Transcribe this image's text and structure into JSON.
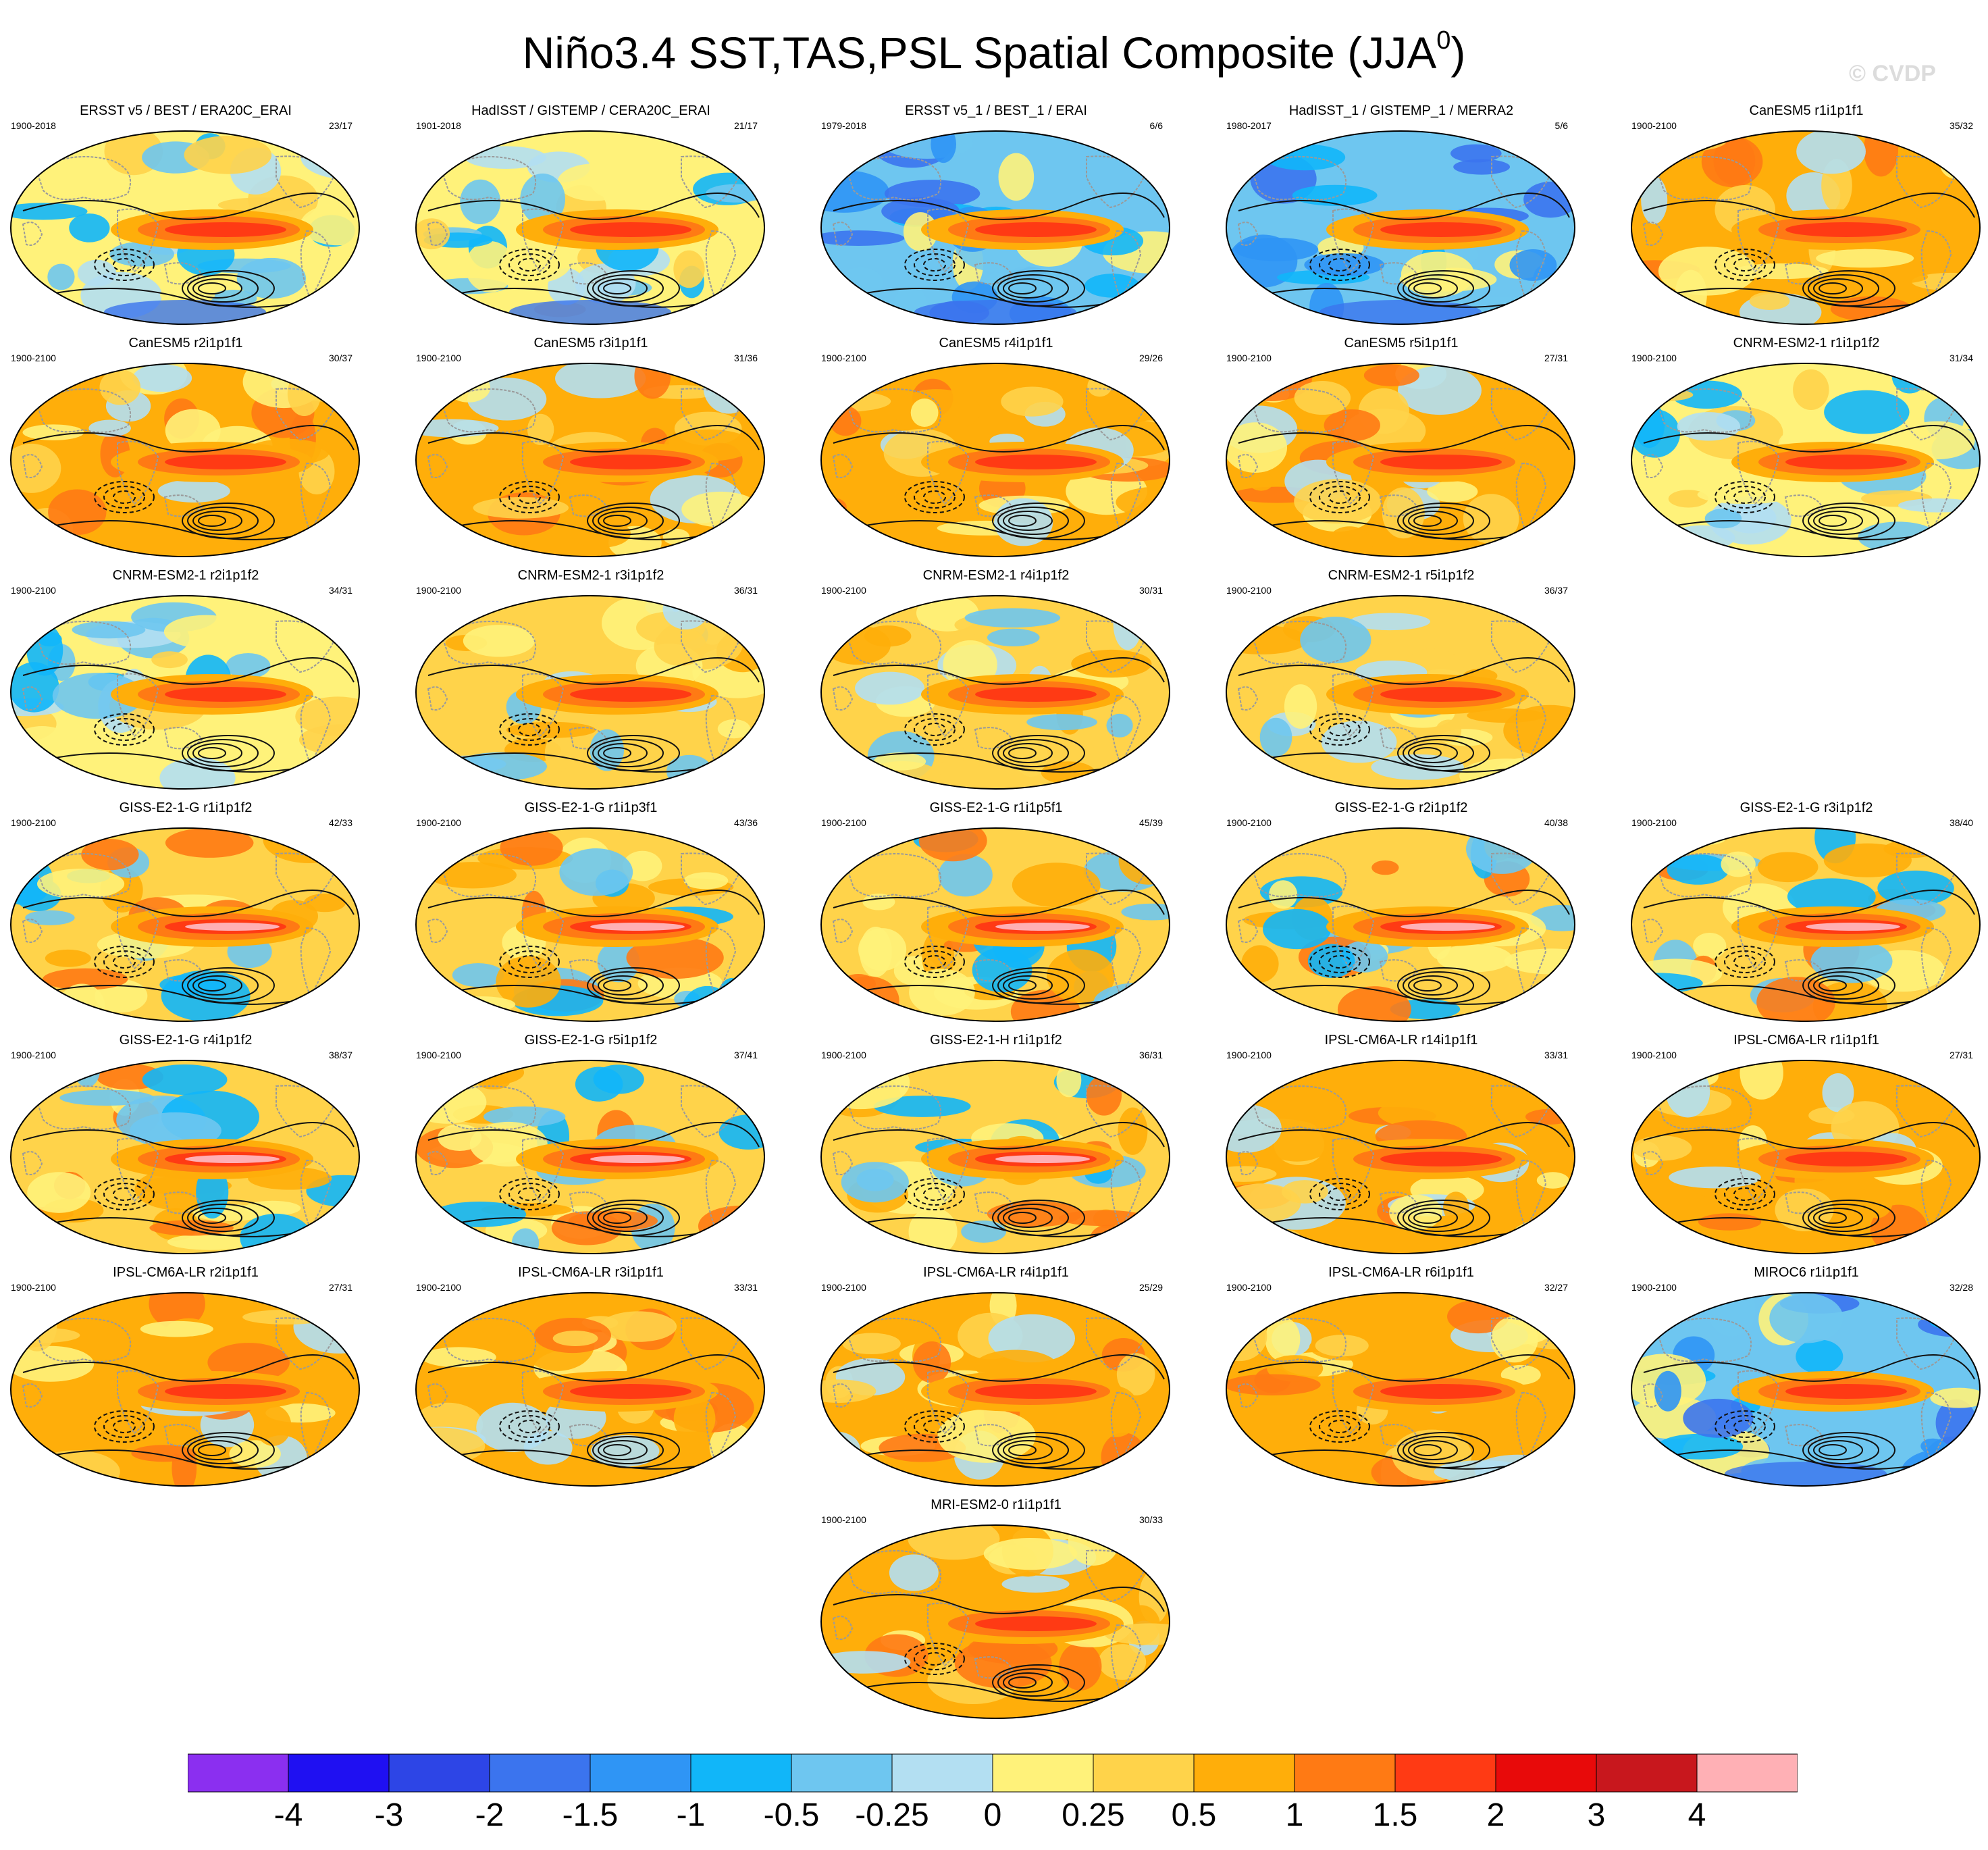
{
  "title": "Niño3.4 SST,TAS,PSL Spatial Composite (JJA",
  "title_sup": "0",
  "title_close": ")",
  "watermark": "© CVDP",
  "colors": {
    "land_outline": "#9a9a9a",
    "contour": "#111111",
    "levels": [
      "#8b2ff0",
      "#1f10f2",
      "#2d45e6",
      "#3b74ee",
      "#2f95f5",
      "#11b6f9",
      "#6ec6f0",
      "#b3dff2",
      "#fff27a",
      "#ffd34a",
      "#ffae0a",
      "#ff7a14",
      "#ff3a14",
      "#e80a0a",
      "#c8171d",
      "#ffb0b5"
    ]
  },
  "panels": [
    {
      "title": "ERSST v5 / BEST / ERA20C_ERAI",
      "years": "1900-2018",
      "count": "23/17",
      "mode": "obs"
    },
    {
      "title": "HadISST / GISTEMP / CERA20C_ERAI",
      "years": "1901-2018",
      "count": "21/17",
      "mode": "obs"
    },
    {
      "title": "ERSST v5_1 / BEST_1 / ERAI",
      "years": "1979-2018",
      "count": "6/6",
      "mode": "cool"
    },
    {
      "title": "HadISST_1 / GISTEMP_1 / MERRA2",
      "years": "1980-2017",
      "count": "5/6",
      "mode": "cool"
    },
    {
      "title": "CanESM5 r1i1p1f1",
      "years": "1900-2100",
      "count": "35/32",
      "mode": "warm"
    },
    {
      "title": "CanESM5 r2i1p1f1",
      "years": "1900-2100",
      "count": "30/37",
      "mode": "warm"
    },
    {
      "title": "CanESM5 r3i1p1f1",
      "years": "1900-2100",
      "count": "31/36",
      "mode": "warm"
    },
    {
      "title": "CanESM5 r4i1p1f1",
      "years": "1900-2100",
      "count": "29/26",
      "mode": "warm"
    },
    {
      "title": "CanESM5 r5i1p1f1",
      "years": "1900-2100",
      "count": "27/31",
      "mode": "warm"
    },
    {
      "title": "CNRM-ESM2-1 r1i1p1f2",
      "years": "1900-2100",
      "count": "31/34",
      "mode": "mild"
    },
    {
      "title": "CNRM-ESM2-1 r2i1p1f2",
      "years": "1900-2100",
      "count": "34/31",
      "mode": "mild"
    },
    {
      "title": "CNRM-ESM2-1 r3i1p1f2",
      "years": "1900-2100",
      "count": "36/31",
      "mode": "mid"
    },
    {
      "title": "CNRM-ESM2-1 r4i1p1f2",
      "years": "1900-2100",
      "count": "30/31",
      "mode": "mid"
    },
    {
      "title": "CNRM-ESM2-1 r5i1p1f2",
      "years": "1900-2100",
      "count": "36/37",
      "mode": "mid"
    },
    {
      "title": "GISS-E2-1-G r1i1p1f2",
      "years": "1900-2100",
      "count": "42/33",
      "mode": "giss"
    },
    {
      "title": "GISS-E2-1-G r1i1p3f1",
      "years": "1900-2100",
      "count": "43/36",
      "mode": "giss"
    },
    {
      "title": "GISS-E2-1-G r1i1p5f1",
      "years": "1900-2100",
      "count": "45/39",
      "mode": "giss"
    },
    {
      "title": "GISS-E2-1-G r2i1p1f2",
      "years": "1900-2100",
      "count": "40/38",
      "mode": "giss"
    },
    {
      "title": "GISS-E2-1-G r3i1p1f2",
      "years": "1900-2100",
      "count": "38/40",
      "mode": "giss"
    },
    {
      "title": "GISS-E2-1-G r4i1p1f2",
      "years": "1900-2100",
      "count": "38/37",
      "mode": "giss"
    },
    {
      "title": "GISS-E2-1-G r5i1p1f2",
      "years": "1900-2100",
      "count": "37/41",
      "mode": "giss"
    },
    {
      "title": "GISS-E2-1-H r1i1p1f2",
      "years": "1900-2100",
      "count": "36/31",
      "mode": "giss"
    },
    {
      "title": "IPSL-CM6A-LR r14i1p1f1",
      "years": "1900-2100",
      "count": "33/31",
      "mode": "warm"
    },
    {
      "title": "IPSL-CM6A-LR r1i1p1f1",
      "years": "1900-2100",
      "count": "27/31",
      "mode": "warm"
    },
    {
      "title": "IPSL-CM6A-LR r2i1p1f1",
      "years": "1900-2100",
      "count": "27/31",
      "mode": "warm"
    },
    {
      "title": "IPSL-CM6A-LR r3i1p1f1",
      "years": "1900-2100",
      "count": "33/31",
      "mode": "warm"
    },
    {
      "title": "IPSL-CM6A-LR r4i1p1f1",
      "years": "1900-2100",
      "count": "25/29",
      "mode": "warm"
    },
    {
      "title": "IPSL-CM6A-LR r6i1p1f1",
      "years": "1900-2100",
      "count": "32/27",
      "mode": "warm"
    },
    {
      "title": "MIROC6 r1i1p1f1",
      "years": "1900-2100",
      "count": "32/28",
      "mode": "cool"
    },
    {
      "title": "MRI-ESM2-0 r1i1p1f1",
      "years": "1900-2100",
      "count": "30/33",
      "mode": "warm"
    }
  ],
  "chart_data": {
    "type": "heatmap",
    "title": "Niño3.4 SST,TAS,PSL Spatial Composite (JJA0)",
    "colorbar_labels": [
      "-4",
      "-3",
      "-2",
      "-1.5",
      "-1",
      "-0.5",
      "-0.25",
      "0",
      "0.25",
      "0.5",
      "1",
      "1.5",
      "2",
      "3",
      "4"
    ],
    "panel_count": 30
  }
}
